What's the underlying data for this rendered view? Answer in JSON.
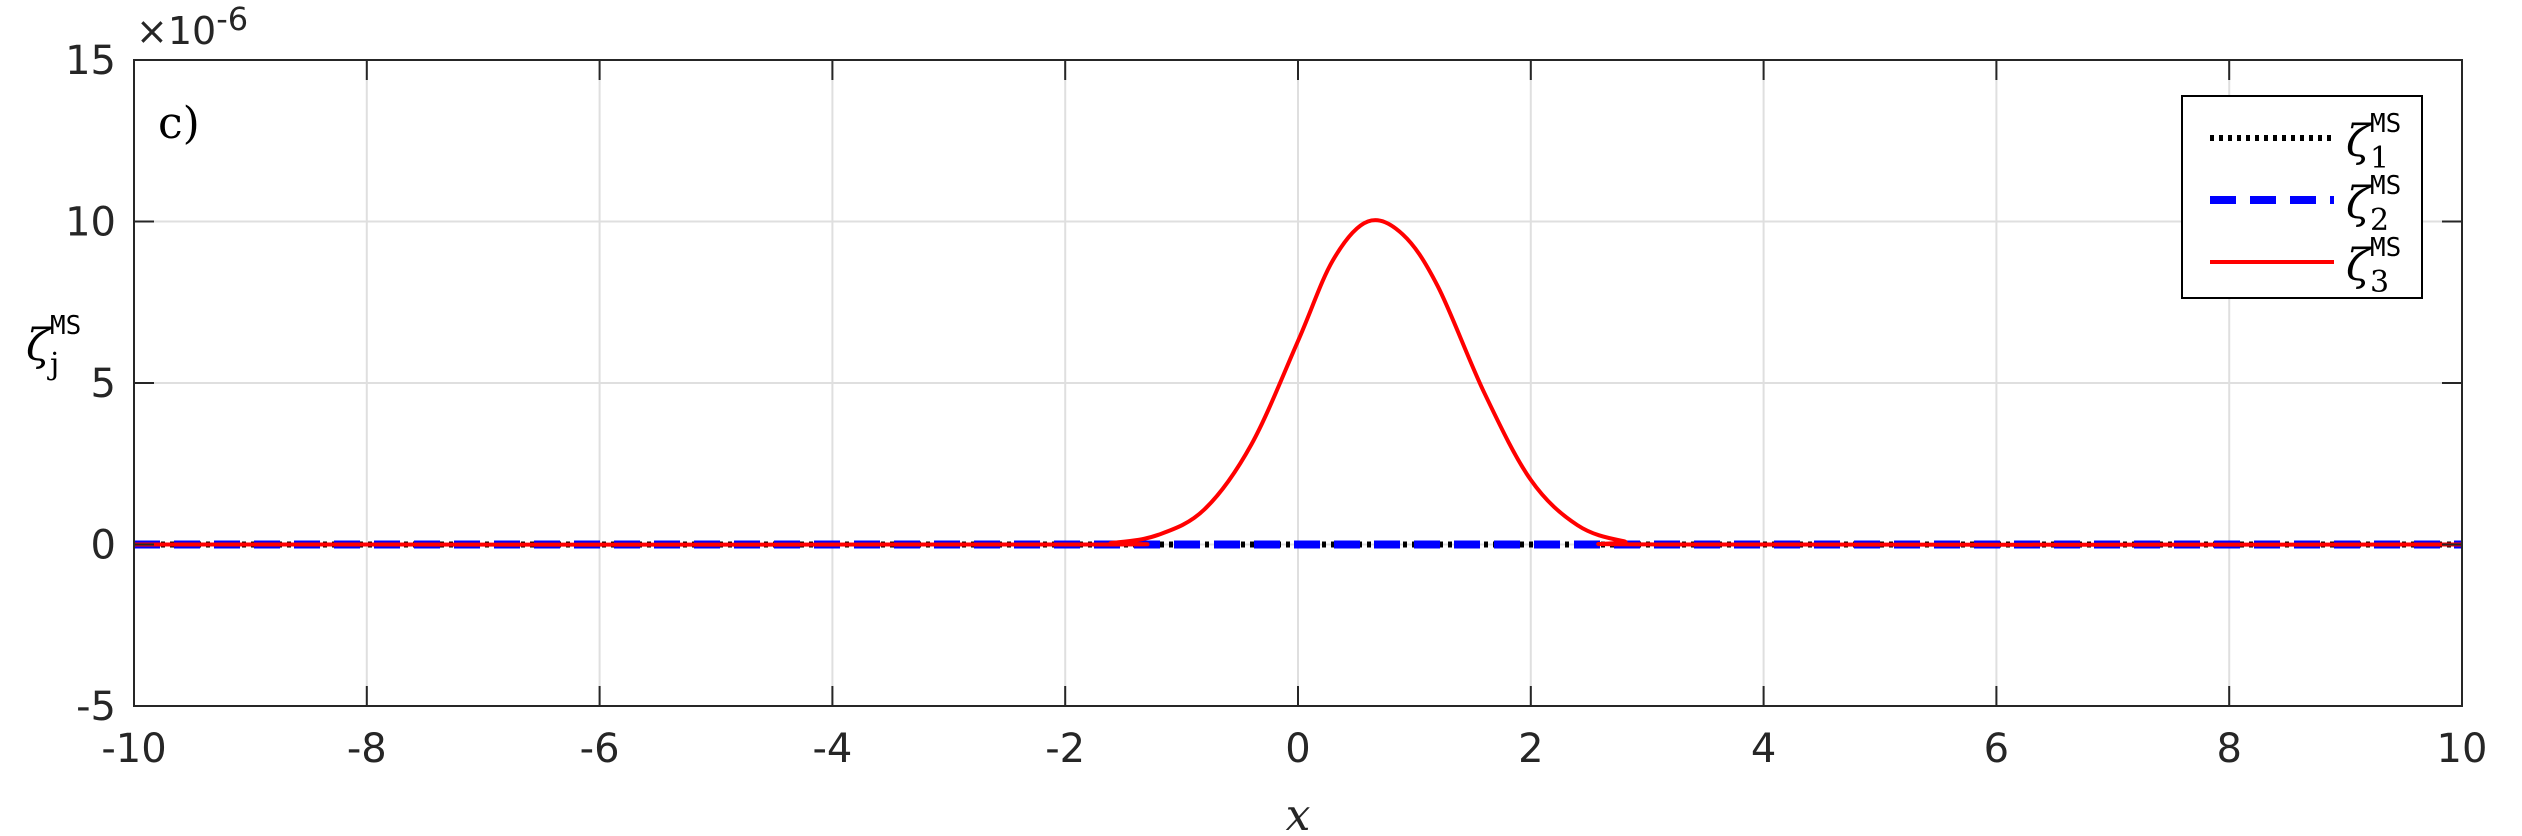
{
  "chart_data": {
    "type": "line",
    "panel_label": "c)",
    "xlabel": "x",
    "ylabel": {
      "base": "ζ",
      "sub": "j",
      "sup": "MS"
    },
    "y_exponent": "×10",
    "y_exponent_power": "-6",
    "xlim": [
      -10,
      10
    ],
    "ylim": [
      -5,
      15
    ],
    "x_ticks": [
      -10,
      -8,
      -6,
      -4,
      -2,
      0,
      2,
      4,
      6,
      8,
      10
    ],
    "x_tick_labels": [
      "-10",
      "-8",
      "-6",
      "-4",
      "-2",
      "0",
      "2",
      "4",
      "6",
      "8",
      "10"
    ],
    "y_ticks": [
      -5,
      0,
      5,
      10,
      15
    ],
    "y_tick_labels": [
      "-5",
      "0",
      "5",
      "10",
      "15"
    ],
    "grid": true,
    "legend_position": "top-right",
    "series": [
      {
        "name": {
          "base": "ζ",
          "sub": "1",
          "sup": "MS"
        },
        "color": "#000000",
        "style": "dotted",
        "x": [
          -10,
          10
        ],
        "y": [
          0,
          0
        ]
      },
      {
        "name": {
          "base": "ζ",
          "sub": "2",
          "sup": "MS"
        },
        "color": "#0000ff",
        "style": "dashed",
        "x": [
          -10,
          10
        ],
        "y": [
          0,
          0
        ]
      },
      {
        "name": {
          "base": "ζ",
          "sub": "3",
          "sup": "MS"
        },
        "color": "#ff0000",
        "style": "solid",
        "x": [
          -10,
          -2,
          -1.6,
          -1.2,
          -0.8,
          -0.4,
          0,
          0.3,
          0.6,
          0.9,
          1.2,
          1.6,
          2,
          2.4,
          2.8,
          3.2,
          10
        ],
        "y": [
          0,
          0,
          0.05,
          0.3,
          1.1,
          3.1,
          6.3,
          8.8,
          10,
          9.6,
          8.0,
          4.7,
          2.0,
          0.6,
          0.1,
          0,
          0
        ]
      }
    ]
  }
}
